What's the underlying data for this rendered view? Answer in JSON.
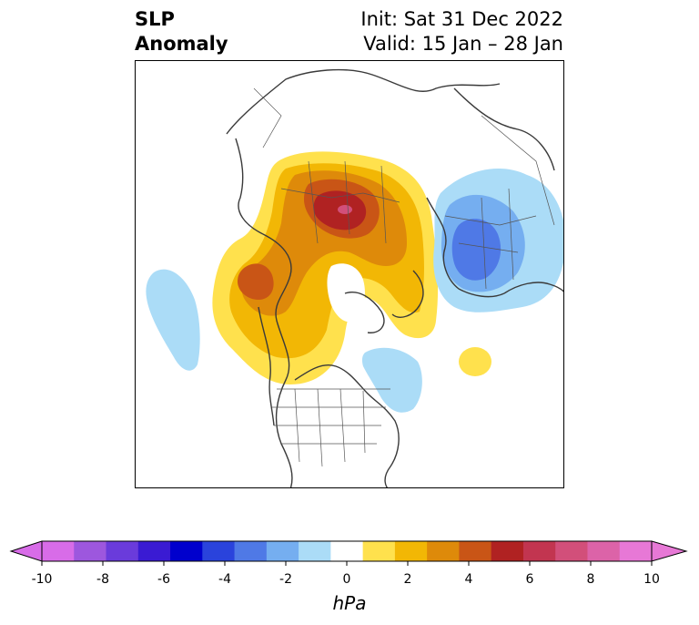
{
  "title": {
    "left_line1": "SLP",
    "left_line2": "Anomaly",
    "right_line1": "Init: Sat 31 Dec 2022",
    "right_line2": "Valid: 15 Jan – 28 Jan"
  },
  "colorbar": {
    "label": "hPa",
    "min": -10,
    "max": 10,
    "extend": "both",
    "tick_labels": [
      "-10",
      "-8",
      "-6",
      "-4",
      "-2",
      "0",
      "2",
      "4",
      "6",
      "8",
      "10"
    ],
    "colors": [
      "#d86ce8",
      "#9d57de",
      "#6a3bdb",
      "#3a1bd3",
      "#0000cd",
      "#2a43dc",
      "#4f79e6",
      "#75aef0",
      "#abdcf7",
      "#ffffff",
      "#ffe14d",
      "#f2b705",
      "#de8a0a",
      "#c95516",
      "#b02222",
      "#c23550",
      "#d24f7a",
      "#dc63a8",
      "#e778d6"
    ]
  },
  "map": {
    "projection": "polar-stereographic",
    "region": "Northern Hemisphere",
    "colors": {
      "coast": "#3a3a3a",
      "border": "#555555"
    }
  }
}
